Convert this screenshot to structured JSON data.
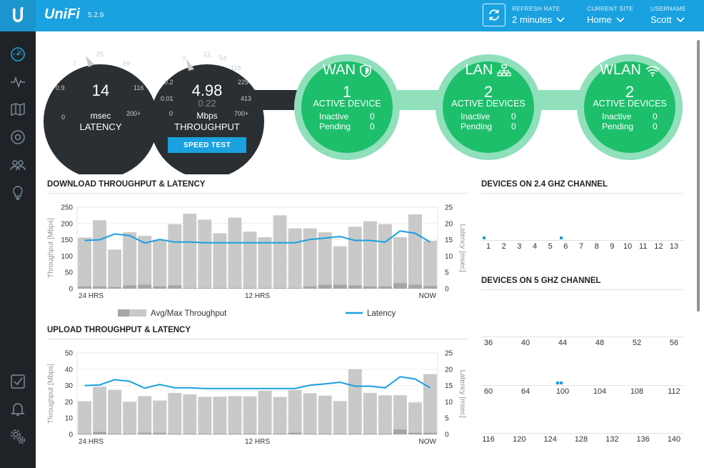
{
  "header": {
    "brand": "UniFi",
    "version": "5.2.9",
    "refresh_rate": {
      "label": "REFRESH RATE",
      "value": "2 minutes"
    },
    "current_site": {
      "label": "CURRENT SITE",
      "value": "Home"
    },
    "username": {
      "label": "USERNAME",
      "value": "Scott"
    }
  },
  "sidebar": {
    "items": [
      "dashboard-icon",
      "statistics-icon",
      "map-icon",
      "devices-icon",
      "clients-icon",
      "insights-icon",
      "alerts-checklist-icon",
      "events-bell-icon",
      "settings-icon"
    ]
  },
  "latency_gauge": {
    "value": "14",
    "unit": "msec",
    "label": "LATENCY",
    "ticks": [
      "0",
      "0.9",
      "7",
      "25",
      "59",
      "116",
      "200+"
    ]
  },
  "throughput_gauge": {
    "value": "4.98",
    "secondary": "0.22",
    "unit": "Mbps",
    "label": "THROUGHPUT",
    "ticks": [
      "0",
      "0.01",
      "0.2",
      "7",
      "22",
      "54",
      "118",
      "229",
      "413",
      "700+"
    ],
    "speed_test": "SPEED TEST"
  },
  "wan": {
    "title": "WAN",
    "count": "1",
    "caption": "ACTIVE DEVICE",
    "inactive_label": "Inactive",
    "inactive": "0",
    "pending_label": "Pending",
    "pending": "0"
  },
  "lan": {
    "title": "LAN",
    "count": "2",
    "caption": "ACTIVE DEVICES",
    "inactive_label": "Inactive",
    "inactive": "0",
    "pending_label": "Pending",
    "pending": "0"
  },
  "wlan": {
    "title": "WLAN",
    "count": "2",
    "caption": "ACTIVE DEVICES",
    "inactive_label": "Inactive",
    "inactive": "0",
    "pending_label": "Pending",
    "pending": "0"
  },
  "legend": {
    "throughput": "Avg/Max Throughput",
    "latency": "Latency"
  },
  "colors": {
    "accent": "#19a1e0",
    "green": "#1dbf6b",
    "green_light": "#8fe0bb",
    "gauge_dark": "#2a2f33",
    "bar_max": "#c9c9c9",
    "bar_avg": "#a5a5a5"
  },
  "chart_data": [
    {
      "type": "bar",
      "title": "DOWNLOAD THROUGHPUT & LATENCY",
      "ylabel": "Throughput [Mbps]",
      "y2label": "Latency [msec]",
      "ylim": [
        0,
        250
      ],
      "y2lim": [
        0,
        25
      ],
      "yticks": [
        "250",
        "200",
        "150",
        "100",
        "50",
        "0"
      ],
      "y2ticks": [
        "25",
        "20",
        "15",
        "10",
        "5",
        "0"
      ],
      "xtick_labels": [
        "24 HRS",
        "12 HRS",
        "NOW"
      ],
      "series": [
        {
          "name": "Avg/Max Throughput",
          "type": "bar",
          "max": [
            157,
            210,
            120,
            173,
            162,
            150,
            198,
            230,
            212,
            170,
            218,
            175,
            158,
            225,
            185,
            185,
            173,
            130,
            190,
            207,
            198,
            158,
            228,
            147
          ],
          "avg": [
            7,
            7,
            5,
            10,
            12,
            7,
            10,
            2,
            2,
            2,
            2,
            2,
            2,
            2,
            2,
            7,
            12,
            12,
            10,
            7,
            7,
            17,
            12,
            8
          ]
        },
        {
          "name": "Latency",
          "type": "line",
          "values": [
            14.8,
            15.0,
            16.8,
            16.3,
            14.0,
            15.1,
            14.3,
            14.3,
            14.1,
            14.1,
            14.1,
            14.1,
            14.1,
            14.1,
            14.1,
            15.1,
            15.5,
            16.0,
            14.8,
            14.8,
            14.3,
            17.7,
            17.0,
            14.3
          ]
        }
      ]
    },
    {
      "type": "bar",
      "title": "UPLOAD THROUGHPUT & LATENCY",
      "ylabel": "Throughput [Mbps]",
      "y2label": "Latency [msec]",
      "ylim": [
        0,
        50
      ],
      "y2lim": [
        0,
        25
      ],
      "yticks": [
        "50",
        "40",
        "30",
        "20",
        "10",
        "0"
      ],
      "y2ticks": [
        "25",
        "20",
        "15",
        "10",
        "5",
        "0"
      ],
      "xtick_labels": [
        "24 HRS",
        "12 HRS",
        "NOW"
      ],
      "series": [
        {
          "name": "Avg/Max Throughput",
          "type": "bar",
          "max": [
            20.4,
            29.3,
            27.4,
            20.0,
            23.5,
            20.8,
            25.5,
            24.6,
            23.1,
            23.2,
            23.5,
            23.3,
            26.9,
            23.0,
            27.3,
            25.3,
            23.8,
            20.5,
            40.0,
            25.5,
            24.0,
            24.0,
            19.6,
            37.0
          ],
          "avg": [
            0.5,
            1.5,
            0.5,
            0.5,
            1.0,
            1.0,
            0.5,
            0.5,
            0.5,
            0.5,
            0.5,
            0.5,
            0.5,
            0.5,
            1.0,
            0.5,
            0.5,
            0.5,
            0.5,
            0.5,
            0.5,
            3.0,
            1.0,
            1.0
          ]
        },
        {
          "name": "Latency",
          "type": "line",
          "values": [
            15.0,
            15.2,
            16.8,
            16.3,
            14.2,
            15.3,
            14.3,
            14.3,
            14.1,
            14.1,
            14.1,
            14.1,
            14.1,
            14.1,
            14.1,
            15.1,
            15.5,
            16.0,
            14.8,
            14.8,
            14.3,
            17.7,
            17.0,
            14.3
          ]
        }
      ]
    }
  ],
  "channels_24": {
    "title": "DEVICES ON 2.4 GHZ CHANNEL",
    "labels": [
      "1",
      "2",
      "3",
      "4",
      "5",
      "6",
      "7",
      "8",
      "9",
      "10",
      "11",
      "12",
      "13"
    ],
    "device_counts": [
      1,
      0,
      0,
      0,
      0,
      1,
      0,
      0,
      0,
      0,
      0,
      0,
      0
    ]
  },
  "channels_5": {
    "title": "DEVICES ON 5 GHZ CHANNEL",
    "rows": [
      {
        "labels": [
          "36",
          "40",
          "44",
          "48",
          "52",
          "56"
        ],
        "device_counts": [
          0,
          0,
          0,
          0,
          0,
          0
        ]
      },
      {
        "labels": [
          "60",
          "64",
          "100",
          "104",
          "108",
          "112"
        ],
        "device_counts": [
          0,
          0,
          2,
          0,
          0,
          0
        ]
      },
      {
        "labels": [
          "116",
          "120",
          "124",
          "128",
          "132",
          "136",
          "140"
        ],
        "device_counts": [
          0,
          0,
          0,
          0,
          0,
          0,
          0
        ]
      }
    ]
  }
}
